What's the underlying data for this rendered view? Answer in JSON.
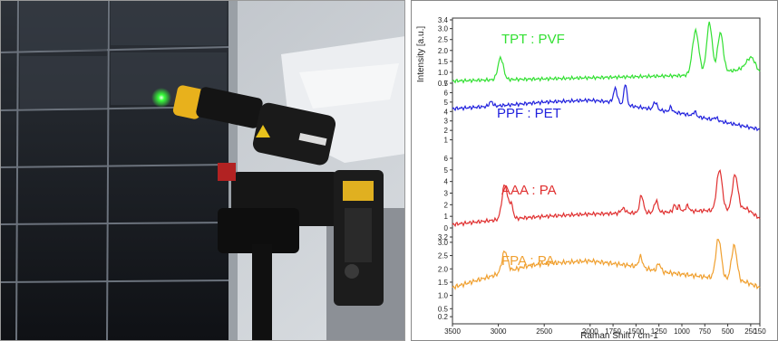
{
  "photo": {
    "description_icon": "laser-probe-on-solar-panel-photo",
    "colors": {
      "panel": "#1c1f24",
      "wall": "#c9cdd2",
      "cloth": "#e9ebee",
      "laser": "#38ff3a",
      "probe": "#141414",
      "ring": "#e8b11c"
    }
  },
  "chart_data": {
    "type": "line",
    "xlabel": "Raman Shift / cm-1",
    "ylabel": "Intensity [a.u.]",
    "x_reversed": true,
    "xlim": [
      3500,
      150
    ],
    "x_ticks": [
      "3500",
      "3000",
      "2500",
      "2000",
      "1750",
      "1500",
      "1250",
      "1000",
      "750",
      "500",
      "250",
      "150"
    ],
    "x_tick_values": [
      3500,
      3000,
      2500,
      2000,
      1750,
      1500,
      1250,
      1000,
      750,
      500,
      250,
      150
    ],
    "panels": [
      {
        "label": "TPT : PVF",
        "color": "#33e033",
        "ylim": [
          0.5,
          3.4
        ],
        "y_ticks": [
          "3.4",
          "3.0",
          "2.5",
          "2.0",
          "1.5",
          "1.0",
          "0.5"
        ],
        "y_tick_values": [
          3.4,
          3.0,
          2.5,
          2.0,
          1.5,
          1.0,
          0.5
        ],
        "baseline": [
          [
            3500,
            0.6
          ],
          [
            3100,
            0.65
          ],
          [
            2500,
            0.7
          ],
          [
            2000,
            0.75
          ],
          [
            1500,
            0.8
          ],
          [
            1000,
            0.85
          ],
          [
            800,
            0.9
          ],
          [
            600,
            1.0
          ],
          [
            400,
            1.1
          ],
          [
            300,
            1.3
          ],
          [
            150,
            1.0
          ]
        ],
        "peaks": [
          [
            2975,
            1.0,
            30
          ],
          [
            850,
            2.0,
            35
          ],
          [
            700,
            2.3,
            30
          ],
          [
            580,
            1.8,
            30
          ],
          [
            240,
            0.5,
            40
          ]
        ]
      },
      {
        "label": "PPF : PET",
        "color": "#2222dd",
        "ylim": [
          0,
          7
        ],
        "y_ticks": [
          "7",
          "6",
          "5",
          "4",
          "3",
          "2",
          "1"
        ],
        "y_tick_values": [
          7,
          6,
          5,
          4,
          3,
          2,
          1
        ],
        "baseline": [
          [
            3500,
            4.3
          ],
          [
            3000,
            4.6
          ],
          [
            2500,
            5.0
          ],
          [
            2000,
            5.2
          ],
          [
            1750,
            5.0
          ],
          [
            1500,
            4.5
          ],
          [
            1000,
            3.8
          ],
          [
            750,
            3.3
          ],
          [
            500,
            2.8
          ],
          [
            250,
            2.3
          ],
          [
            150,
            2.1
          ]
        ],
        "peaks": [
          [
            3080,
            0.5,
            20
          ],
          [
            1725,
            1.5,
            20
          ],
          [
            1615,
            2.3,
            15
          ],
          [
            1290,
            0.8,
            20
          ],
          [
            1120,
            0.5,
            15
          ],
          [
            860,
            0.5,
            15
          ],
          [
            630,
            0.3,
            20
          ]
        ]
      },
      {
        "label": "AAA : PA",
        "color": "#e03030",
        "ylim": [
          0,
          6
        ],
        "y_ticks": [
          "6",
          "5",
          "4",
          "3",
          "2",
          "1",
          "0"
        ],
        "y_tick_values": [
          6,
          5,
          4,
          3,
          2,
          1,
          0
        ],
        "baseline": [
          [
            3500,
            0.3
          ],
          [
            3000,
            0.7
          ],
          [
            2500,
            1.0
          ],
          [
            2000,
            1.2
          ],
          [
            1500,
            1.3
          ],
          [
            1000,
            1.4
          ],
          [
            750,
            1.5
          ],
          [
            500,
            1.5
          ],
          [
            300,
            1.7
          ],
          [
            150,
            0.8
          ]
        ],
        "peaks": [
          [
            2930,
            3.0,
            30
          ],
          [
            2860,
            1.2,
            20
          ],
          [
            1640,
            0.4,
            25
          ],
          [
            1440,
            1.5,
            20
          ],
          [
            1280,
            1.0,
            20
          ],
          [
            1080,
            0.6,
            15
          ],
          [
            1030,
            0.5,
            15
          ],
          [
            940,
            0.5,
            20
          ],
          [
            590,
            3.5,
            30
          ],
          [
            420,
            3.0,
            30
          ]
        ]
      },
      {
        "label": "FPA : PA",
        "color": "#f0a030",
        "ylim": [
          0,
          3.2
        ],
        "y_ticks": [
          "3.2",
          "3.0",
          "2.5",
          "2.0",
          "1.5",
          "1.0",
          "0.5",
          "0.2"
        ],
        "y_tick_values": [
          3.2,
          3.0,
          2.5,
          2.0,
          1.5,
          1.0,
          0.5,
          0.2
        ],
        "baseline": [
          [
            3500,
            1.3
          ],
          [
            3100,
            1.7
          ],
          [
            2700,
            2.1
          ],
          [
            2500,
            2.2
          ],
          [
            2000,
            2.3
          ],
          [
            1500,
            2.1
          ],
          [
            1250,
            1.9
          ],
          [
            1000,
            1.8
          ],
          [
            750,
            1.7
          ],
          [
            500,
            1.6
          ],
          [
            300,
            1.5
          ],
          [
            150,
            1.3
          ]
        ],
        "peaks": [
          [
            2930,
            0.8,
            30
          ],
          [
            1450,
            0.4,
            20
          ],
          [
            1250,
            0.3,
            20
          ],
          [
            600,
            1.5,
            30
          ],
          [
            430,
            1.3,
            30
          ]
        ]
      }
    ]
  }
}
